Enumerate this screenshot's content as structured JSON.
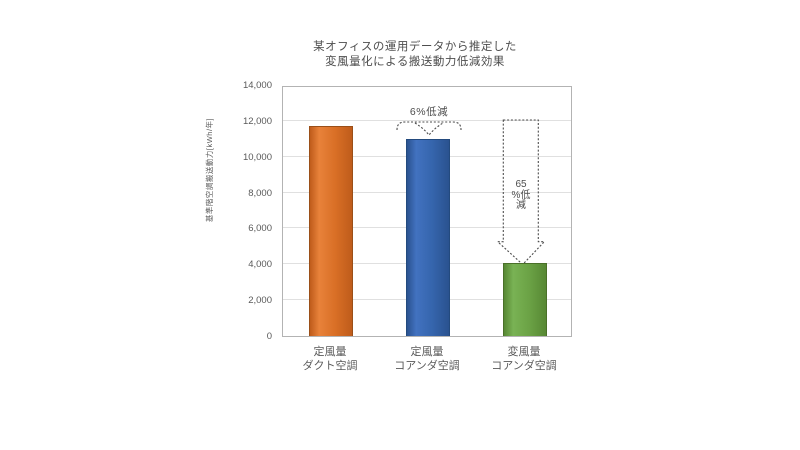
{
  "chart": {
    "title_line1": "某オフィスの運用データから推定した",
    "title_line2": "変風量化による搬送動力低減効果"
  },
  "chart_data": {
    "type": "bar",
    "title": "某オフィスの運用データから推定した変風量化による搬送動力低減効果",
    "xlabel": "",
    "ylabel": "基準階空調搬送動力[kWh/年]",
    "ylim": [
      0,
      14000
    ],
    "ytick_step": 2000,
    "ytick_labels": [
      "0",
      "2,000",
      "4,000",
      "6,000",
      "8,000",
      "10,000",
      "12,000",
      "14,000"
    ],
    "grid": true,
    "legend": false,
    "categories": [
      {
        "line1": "定風量",
        "line2": "ダクト空調"
      },
      {
        "line1": "定風量",
        "line2": "コアンダ空調"
      },
      {
        "line1": "変風量",
        "line2": "コアンダ空調"
      }
    ],
    "values": [
      11700,
      11000,
      4050
    ],
    "bar_styles": [
      {
        "fill": "#d96f26",
        "light": "#e8823a",
        "dark": "#bf5c1b",
        "border": "#9a4f18"
      },
      {
        "fill": "#3565ad",
        "light": "#4272c0",
        "dark": "#2a528f",
        "border": "#234a7e"
      },
      {
        "fill": "#6ba245",
        "light": "#79b254",
        "dark": "#578834",
        "border": "#4a7029"
      }
    ],
    "annotations": [
      {
        "target": "定風量 コアンダ空調",
        "label": "6%低減",
        "shape": "dashed-brace-down"
      },
      {
        "target": "変風量 コアンダ空調",
        "label": "65%低減",
        "label_lines": [
          "65",
          "%低",
          "減"
        ],
        "shape": "dashed-down-arrow"
      }
    ],
    "annotation_color": "#4d4d4d"
  }
}
